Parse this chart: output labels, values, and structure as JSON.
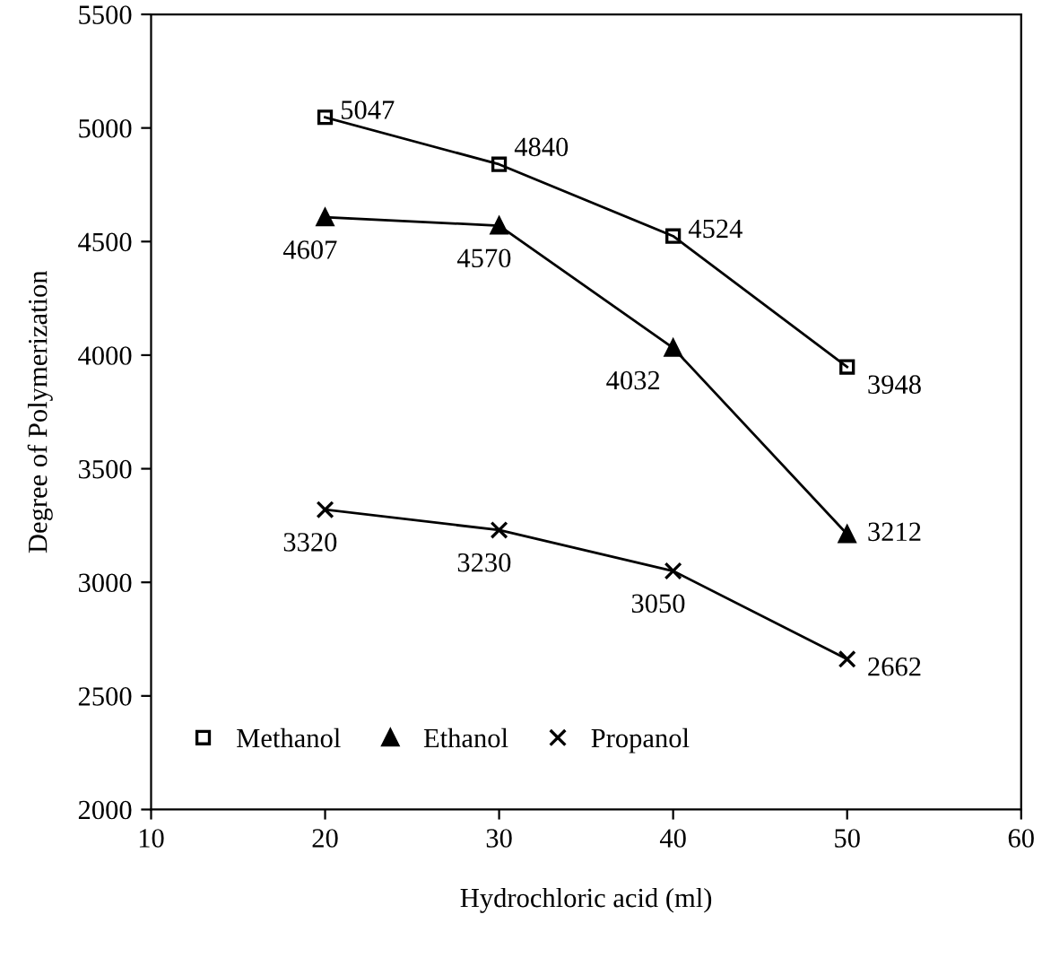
{
  "chart_data": {
    "type": "line",
    "xlabel": "Hydrochloric acid (ml)",
    "ylabel": "Degree of Polymerization",
    "x": [
      20,
      30,
      40,
      50
    ],
    "series": [
      {
        "name": "Methanol",
        "color": "#000000",
        "marker": "square",
        "values": [
          5047,
          4840,
          4524,
          3948
        ]
      },
      {
        "name": "Ethanol",
        "color": "#000000",
        "marker": "triangle",
        "values": [
          4607,
          4570,
          4032,
          3212
        ]
      },
      {
        "name": "Propanol",
        "color": "#000000",
        "marker": "cross",
        "values": [
          3320,
          3230,
          3050,
          2662
        ]
      }
    ],
    "xlim": [
      10,
      60
    ],
    "xticks": [
      10,
      20,
      30,
      40,
      50,
      60
    ],
    "ylim": [
      2000,
      5500
    ],
    "yticks": [
      2000,
      2500,
      3000,
      3500,
      4000,
      4500,
      5000,
      5500
    ],
    "data_labels": true,
    "legend": "bottom left",
    "grid": false,
    "line_style": "solid"
  }
}
